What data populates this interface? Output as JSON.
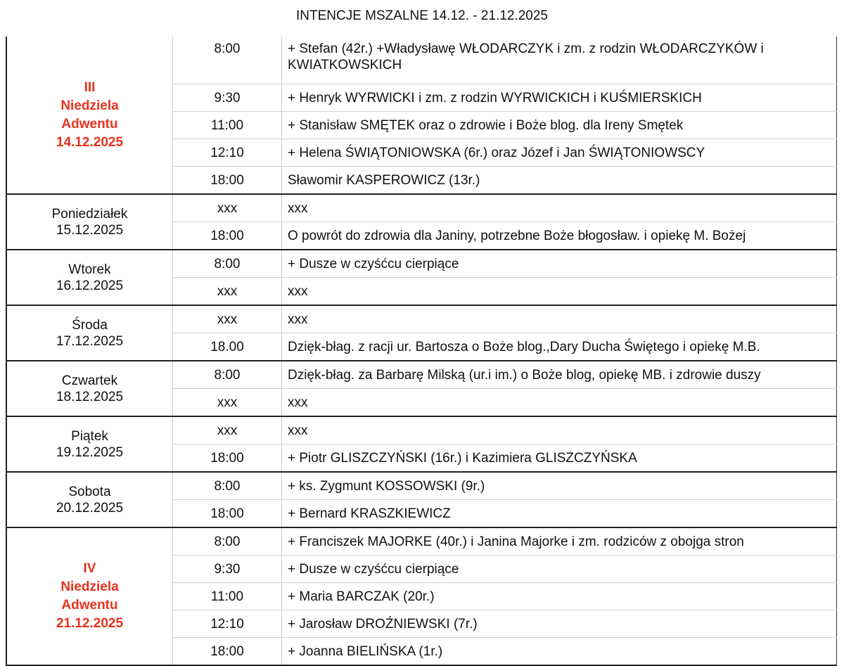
{
  "title": "INTENCJE MSZALNE 14.12. - 21.12.2025",
  "accent_color": "#e8321e",
  "days": [
    {
      "label": [
        "III",
        "Niedziela",
        "Adwentu",
        "14.12.2025"
      ],
      "highlight": true,
      "masses": [
        {
          "time": "8:00",
          "intention": "+ Stefan (42r.) +Władysławę WŁODARCZYK i zm. z rodzin WŁODARCZYKÓW i KWIATKOWSKICH"
        },
        {
          "time": "9:30",
          "intention": "+ Henryk WYRWICKI  i zm. z rodzin WYRWICKICH i KUŚMIERSKICH"
        },
        {
          "time": "11:00",
          "intention": "+ Stanisław SMĘTEK oraz o zdrowie i Boże blog. dla Ireny Smętek"
        },
        {
          "time": "12:10",
          "intention": "+ Helena ŚWIĄTONIOWSKA (6r.) oraz Józef i Jan ŚWIĄTONIOWSCY"
        },
        {
          "time": "18:00",
          "intention": "Sławomir KASPEROWICZ (13r.)"
        }
      ]
    },
    {
      "label": [
        "Poniedziałek",
        "15.12.2025"
      ],
      "highlight": false,
      "masses": [
        {
          "time": "xxx",
          "intention": "xxx"
        },
        {
          "time": "18:00",
          "intention": "O powrót do zdrowia dla Janiny, potrzebne Boże błogosław. i opiekę M. Bożej"
        }
      ]
    },
    {
      "label": [
        "Wtorek",
        "16.12.2025"
      ],
      "highlight": false,
      "masses": [
        {
          "time": "8:00",
          "intention": "+ Dusze w czyśćcu cierpiące"
        },
        {
          "time": "xxx",
          "intention": "xxx"
        }
      ]
    },
    {
      "label": [
        "Środa",
        "17.12.2025"
      ],
      "highlight": false,
      "masses": [
        {
          "time": "xxx",
          "intention": "xxx"
        },
        {
          "time": "18.00",
          "intention": "Dzięk-błag. z racji ur. Bartosza o Boże blog.,Dary Ducha Świętego i opiekę M.B."
        }
      ]
    },
    {
      "label": [
        "Czwartek",
        "18.12.2025"
      ],
      "highlight": false,
      "masses": [
        {
          "time": "8:00",
          "intention": "Dzięk-błag. za Barbarę Milską (ur.i im.) o Boże blog, opiekę MB. i zdrowie duszy"
        },
        {
          "time": "xxx",
          "intention": "xxx"
        }
      ]
    },
    {
      "label": [
        "Piątek",
        "19.12.2025"
      ],
      "highlight": false,
      "masses": [
        {
          "time": "xxx",
          "intention": "xxx"
        },
        {
          "time": "18:00",
          "intention": "+ Piotr GLISZCZYŃSKI (16r.) i Kazimiera GLISZCZYŃSKA"
        }
      ]
    },
    {
      "label": [
        "Sobota",
        "20.12.2025"
      ],
      "highlight": false,
      "masses": [
        {
          "time": "8:00",
          "intention": "+ ks. Zygmunt KOSSOWSKI (9r.)"
        },
        {
          "time": "18:00",
          "intention": "+ Bernard KRASZKIEWICZ"
        }
      ]
    },
    {
      "label": [
        "IV",
        "Niedziela",
        "Adwentu",
        "21.12.2025"
      ],
      "highlight": true,
      "masses": [
        {
          "time": "8:00",
          "intention": "+ Franciszek MAJORKE (40r.) i Janina Majorke i zm. rodziców z obojga stron"
        },
        {
          "time": "9:30",
          "intention": "+ Dusze w czyśćcu cierpiące"
        },
        {
          "time": "11:00",
          "intention": "+ Maria BARCZAK (20r.)"
        },
        {
          "time": "12:10",
          "intention": "+ Jarosław DROŹNIEWSKI (7r.)"
        },
        {
          "time": "18:00",
          "intention": "+ Joanna BIELIŃSKA (1r.)"
        }
      ]
    }
  ]
}
